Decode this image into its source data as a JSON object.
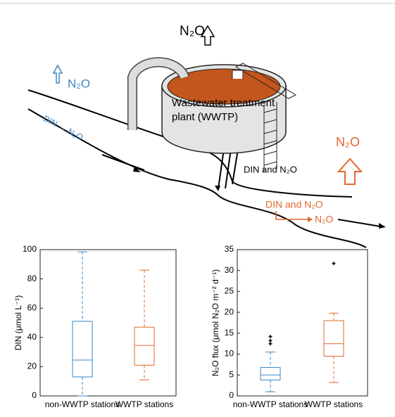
{
  "diagram": {
    "top_label": "N₂O",
    "left_label": "N₂O",
    "river_label": "DIN → N₂O",
    "plant_label_1": "Wastewater treatment",
    "plant_label_2": "plant (WWTP)",
    "effluent_label": "DIN and N₂O",
    "right_label": "N₂O",
    "downstream_label": "DIN and N₂O",
    "downstream_product": "N₂O"
  },
  "chart_data": [
    {
      "type": "box",
      "ylabel": "DIN (μmol L⁻¹)",
      "categories": [
        "non-WWTP stations",
        "WWTP stations"
      ],
      "colors": [
        "#3a86c4",
        "#e0692b"
      ],
      "min": [
        0,
        11
      ],
      "q1": [
        13,
        21
      ],
      "median": [
        24.5,
        34.5
      ],
      "q3": [
        51,
        47
      ],
      "max": [
        98.5,
        86
      ],
      "outliers": [
        [],
        []
      ],
      "ylim": [
        0,
        100
      ],
      "yticks": [
        0,
        20,
        40,
        60,
        80,
        100
      ]
    },
    {
      "type": "box",
      "ylabel": "N₂O flux (μmol N₂O m⁻² d⁻¹)",
      "categories": [
        "non-WWTP stations",
        "WWTP stations"
      ],
      "colors": [
        "#3a86c4",
        "#e0692b"
      ],
      "min": [
        1,
        3.2
      ],
      "q1": [
        3.8,
        9.5
      ],
      "median": [
        5,
        12.5
      ],
      "q3": [
        6.8,
        18
      ],
      "max": [
        10.5,
        19.8
      ],
      "outliers": [
        [
          12.5,
          13.2,
          14.2
        ],
        [
          31.7
        ]
      ],
      "ylim": [
        0,
        35
      ],
      "yticks": [
        0,
        5,
        10,
        15,
        20,
        25,
        30,
        35
      ]
    }
  ]
}
